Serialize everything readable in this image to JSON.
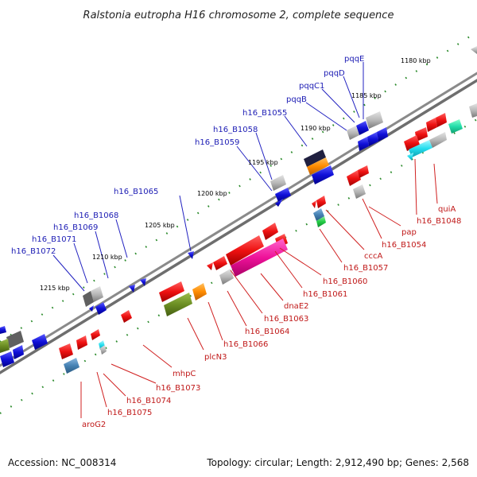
{
  "title": "Ralstonia eutropha H16 chromosome 2, complete sequence",
  "accession_text": "Accession: NC_008314",
  "topology_text": "Topology: circular; Length: 2,912,490 bp; Genes: 2,568",
  "ticks": [
    "1180 kbp",
    "1185 kbp",
    "1190 kbp",
    "1195 kbp",
    "1200 kbp",
    "1205 kbp",
    "1210 kbp",
    "1215 kbp"
  ],
  "upper_labels": [
    "pqqE",
    "pqqD",
    "pqqC1",
    "pqqB",
    "h16_B1055",
    "h16_B1058",
    "h16_B1059",
    "h16_B1065",
    "h16_B1068",
    "h16_B1069",
    "h16_B1071",
    "h16_B1072"
  ],
  "lower_labels": [
    "quiA",
    "h16_B1048",
    "pap",
    "h16_B1054",
    "cccA",
    "h16_B1057",
    "h16_B1060",
    "h16_B1061",
    "dnaE2",
    "h16_B1063",
    "h16_B1064",
    "h16_B1066",
    "plcN3",
    "mhpC",
    "h16_B1073",
    "h16_B1074",
    "h16_B1075",
    "aroG2"
  ],
  "colors": {
    "red": "#ee1111",
    "blue": "#1010d8",
    "gray": "#b8b8b8",
    "magenta": "#ee1199",
    "olive": "#6b8e23",
    "orange": "#ff8c00",
    "steel": "#4682b4",
    "cyan": "#22ddee",
    "green": "#22cc44",
    "backbone": "#7a7a7a"
  }
}
